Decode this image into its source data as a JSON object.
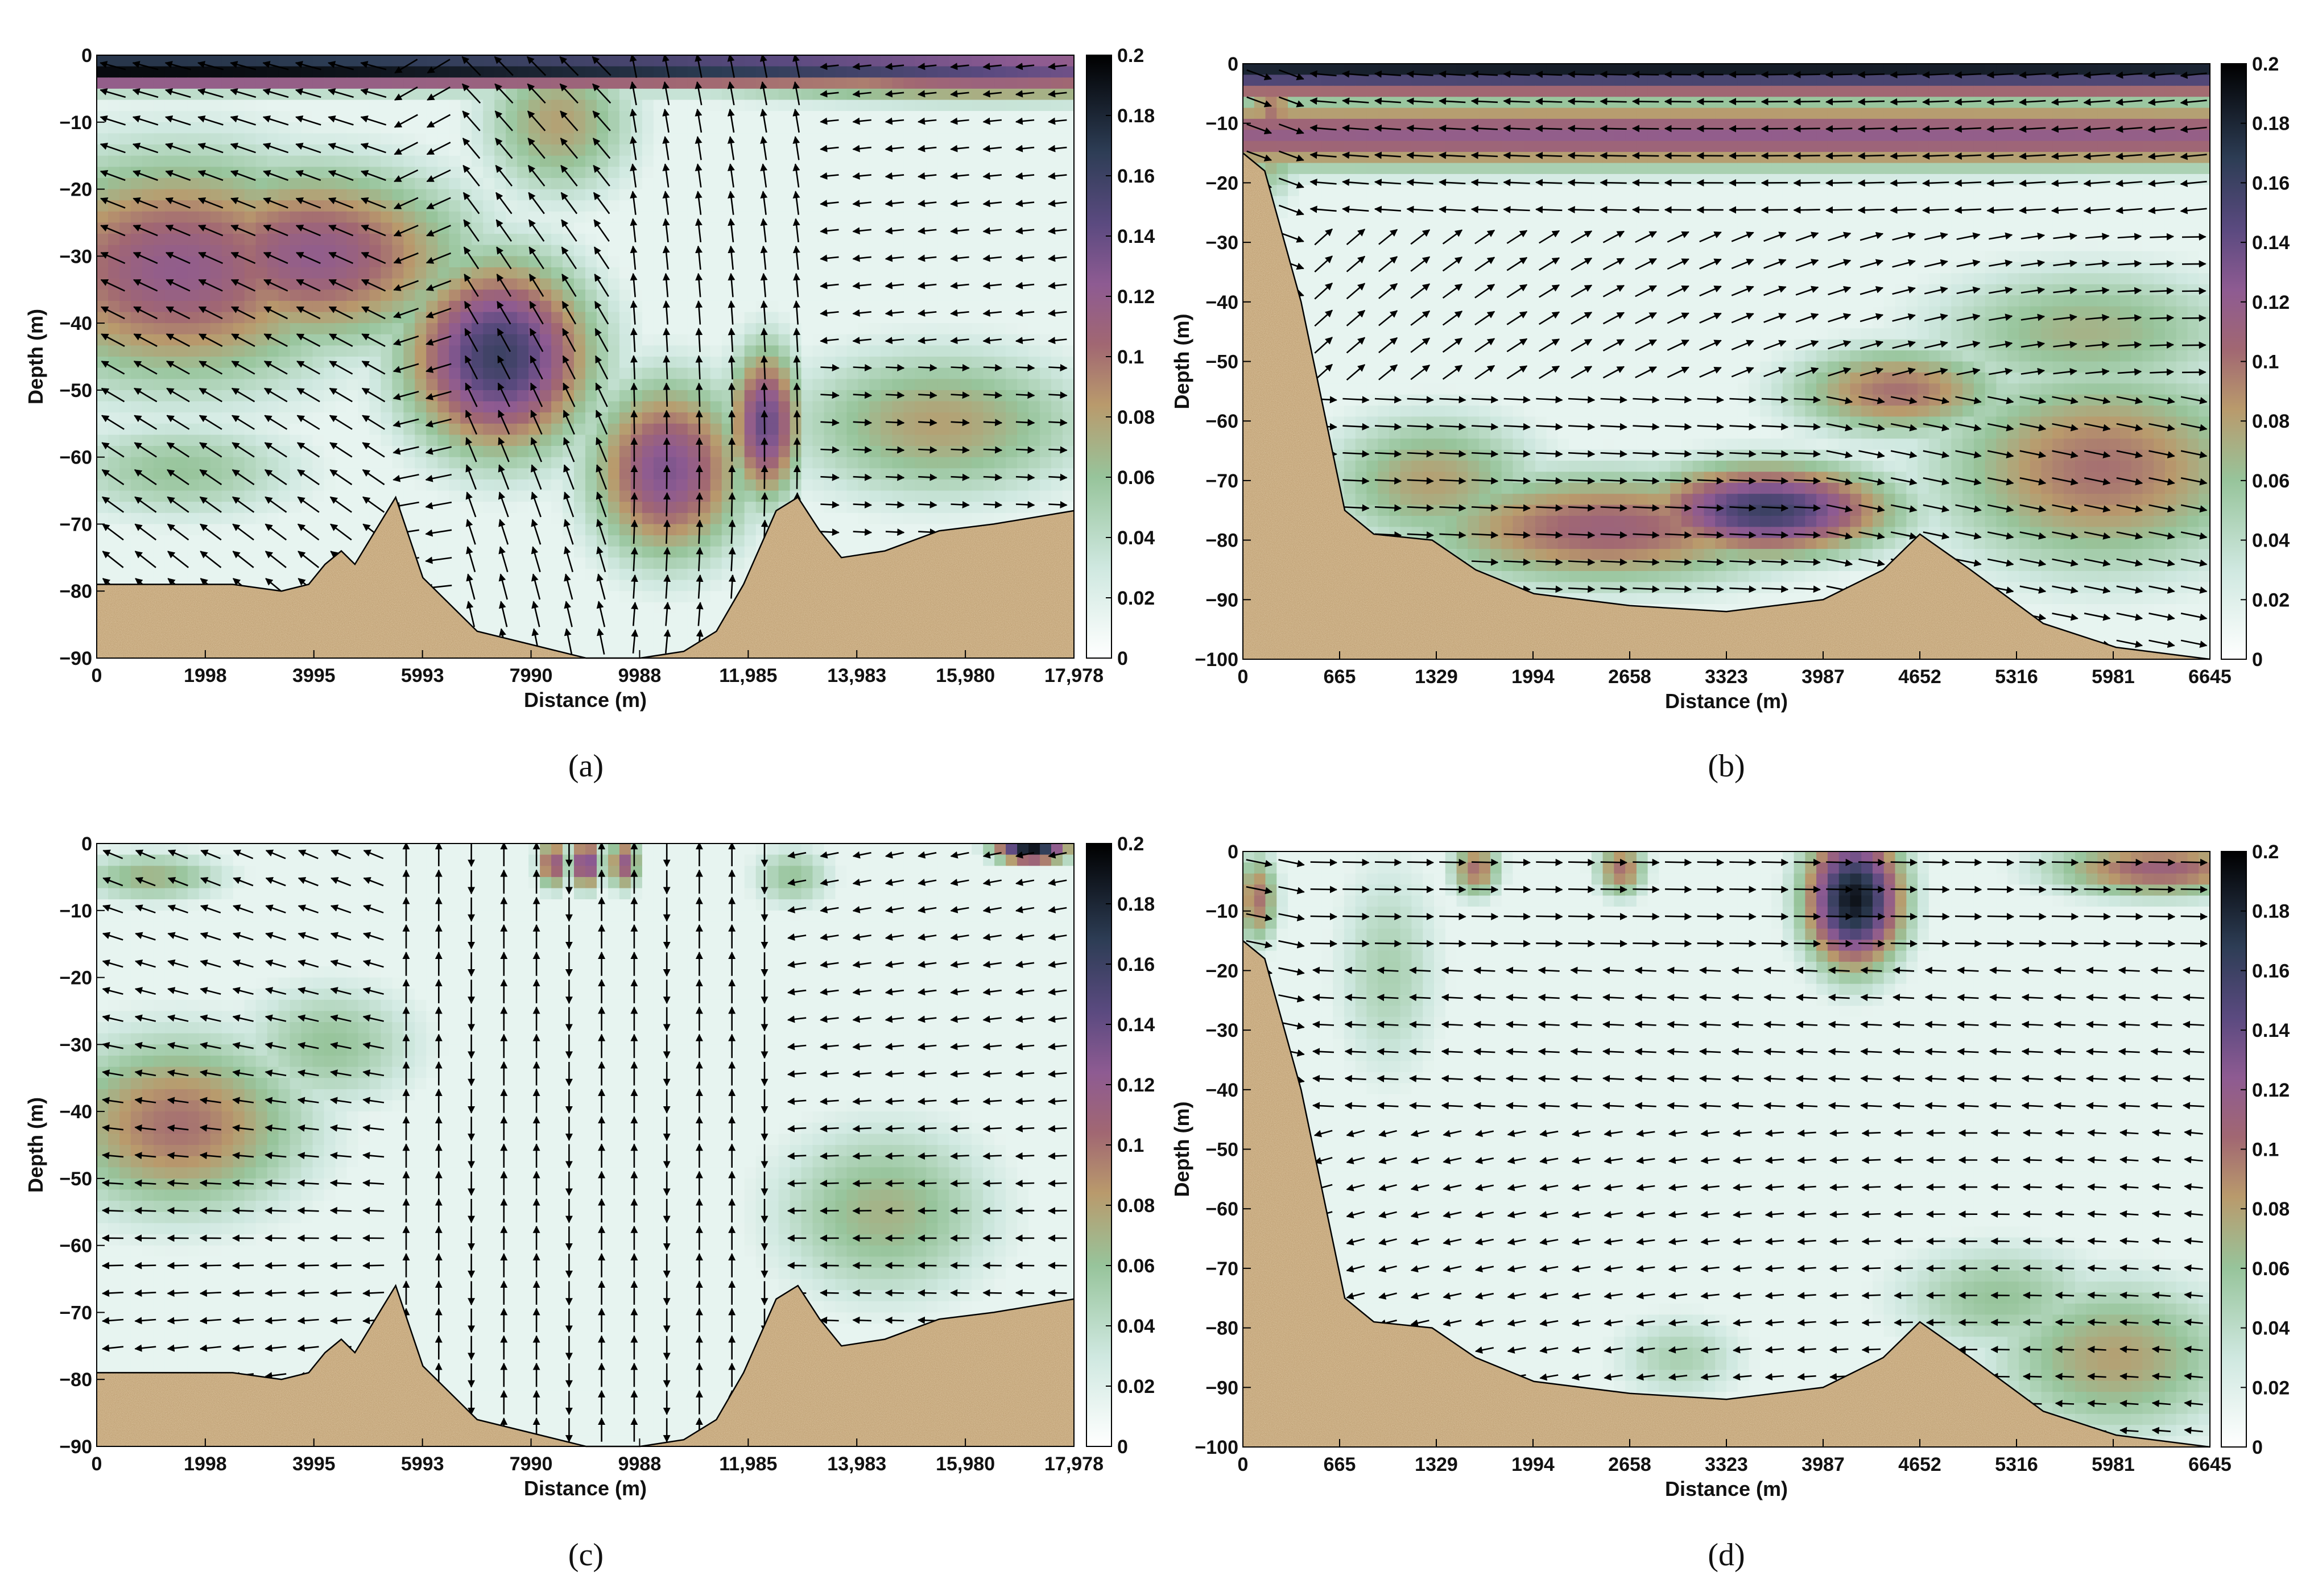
{
  "figure": {
    "captions": [
      "(a)",
      "(b)",
      "(c)",
      "(d)"
    ]
  },
  "chart_data": [
    {
      "id": "a",
      "type": "heatmap",
      "caption": "(a)",
      "xlabel": "Distance (m)",
      "ylabel": "Depth (m)",
      "xlim": [
        0,
        17978
      ],
      "ylim": [
        -90,
        0
      ],
      "xticks": [
        "0",
        "1998",
        "3995",
        "5993",
        "7990",
        "9988",
        "11,985",
        "13,983",
        "15,980",
        "17,978"
      ],
      "yticks": [
        "0",
        "−10",
        "−20",
        "−30",
        "−40",
        "−50",
        "−60",
        "−70",
        "−80",
        "−90"
      ],
      "colorbar": {
        "range": [
          0,
          0.2
        ],
        "ticks": [
          "0.2",
          "0.18",
          "0.16",
          "0.14",
          "0.12",
          "0.1",
          "0.08",
          "0.06",
          "0.04",
          "0.02",
          "0"
        ]
      },
      "bathymetry": [
        [
          0,
          -79
        ],
        [
          2500,
          -79
        ],
        [
          3400,
          -80
        ],
        [
          3900,
          -79
        ],
        [
          4200,
          -76
        ],
        [
          4500,
          -74
        ],
        [
          4750,
          -76
        ],
        [
          5500,
          -66
        ],
        [
          6000,
          -78
        ],
        [
          7000,
          -86
        ],
        [
          8000,
          -88
        ],
        [
          9000,
          -90
        ],
        [
          10000,
          -90
        ],
        [
          10800,
          -89
        ],
        [
          11400,
          -86
        ],
        [
          11900,
          -79
        ],
        [
          12500,
          -68
        ],
        [
          12900,
          -66
        ],
        [
          13300,
          -71
        ],
        [
          13700,
          -75
        ],
        [
          14500,
          -74
        ],
        [
          15500,
          -71
        ],
        [
          16500,
          -70
        ],
        [
          17978,
          -68
        ]
      ],
      "speed_blobs": [
        {
          "x": 0,
          "y": -2,
          "sx": 30000,
          "sy": 3,
          "v": 0.2
        },
        {
          "x": 1500,
          "y": -32,
          "sx": 3500,
          "sy": 18,
          "v": 0.12
        },
        {
          "x": 4000,
          "y": -30,
          "sx": 3000,
          "sy": 14,
          "v": 0.12
        },
        {
          "x": 7400,
          "y": -45,
          "sx": 1800,
          "sy": 15,
          "v": 0.16
        },
        {
          "x": 10500,
          "y": -62,
          "sx": 1500,
          "sy": 14,
          "v": 0.13
        },
        {
          "x": 12300,
          "y": -55,
          "sx": 700,
          "sy": 12,
          "v": 0.14
        },
        {
          "x": 8500,
          "y": -10,
          "sx": 1500,
          "sy": 12,
          "v": 0.08
        },
        {
          "x": 1500,
          "y": -62,
          "sx": 2500,
          "sy": 8,
          "v": 0.06
        },
        {
          "x": 15500,
          "y": -55,
          "sx": 3000,
          "sy": 12,
          "v": 0.08
        },
        {
          "x": 16500,
          "y": -3,
          "sx": 6000,
          "sy": 4,
          "v": 0.12
        }
      ],
      "flow_field": "westward-upper",
      "vmax": 0.2
    },
    {
      "id": "b",
      "type": "heatmap",
      "caption": "(b)",
      "xlabel": "Distance (m)",
      "ylabel": "Depth (m)",
      "xlim": [
        0,
        6645
      ],
      "ylim": [
        -100,
        0
      ],
      "xticks": [
        "0",
        "665",
        "1329",
        "1994",
        "2658",
        "3323",
        "3987",
        "4652",
        "5316",
        "5981",
        "6645"
      ],
      "yticks": [
        "0",
        "−10",
        "−20",
        "−30",
        "−40",
        "−50",
        "−60",
        "−70",
        "−80",
        "−90",
        "−100"
      ],
      "colorbar": {
        "range": [
          0,
          0.2
        ],
        "ticks": [
          "0.2",
          "0.18",
          "0.16",
          "0.14",
          "0.12",
          "0.1",
          "0.08",
          "0.06",
          "0.04",
          "0.02",
          "0"
        ]
      },
      "bathymetry": [
        [
          0,
          -15
        ],
        [
          150,
          -18
        ],
        [
          400,
          -40
        ],
        [
          700,
          -75
        ],
        [
          900,
          -79
        ],
        [
          1300,
          -80
        ],
        [
          1600,
          -85
        ],
        [
          2000,
          -89
        ],
        [
          2658,
          -91
        ],
        [
          3323,
          -92
        ],
        [
          3987,
          -90
        ],
        [
          4400,
          -85
        ],
        [
          4652,
          -79
        ],
        [
          5000,
          -85
        ],
        [
          5500,
          -94
        ],
        [
          6000,
          -98
        ],
        [
          6645,
          -100
        ]
      ],
      "speed_blobs": [
        {
          "x": 3300,
          "y": 0,
          "sx": 20000,
          "sy": 6,
          "v": 0.19
        },
        {
          "x": 3300,
          "y": -12,
          "sx": 20000,
          "sy": 6,
          "v": 0.12
        },
        {
          "x": 3600,
          "y": -75,
          "sx": 900,
          "sy": 8,
          "v": 0.16
        },
        {
          "x": 2500,
          "y": -78,
          "sx": 1400,
          "sy": 10,
          "v": 0.11
        },
        {
          "x": 1300,
          "y": -70,
          "sx": 800,
          "sy": 12,
          "v": 0.08
        },
        {
          "x": 5900,
          "y": -68,
          "sx": 1200,
          "sy": 18,
          "v": 0.1
        },
        {
          "x": 5800,
          "y": -45,
          "sx": 1200,
          "sy": 12,
          "v": 0.07
        },
        {
          "x": 4500,
          "y": -55,
          "sx": 800,
          "sy": 8,
          "v": 0.1
        },
        {
          "x": 200,
          "y": -10,
          "sx": 200,
          "sy": 12,
          "v": 0.1
        }
      ],
      "flow_field": "two-layer",
      "vmax": 0.2
    },
    {
      "id": "c",
      "type": "heatmap",
      "caption": "(c)",
      "xlabel": "Distance (m)",
      "ylabel": "Depth (m)",
      "xlim": [
        0,
        17978
      ],
      "ylim": [
        -90,
        0
      ],
      "xticks": [
        "0",
        "1998",
        "3995",
        "5993",
        "7990",
        "9988",
        "11,985",
        "13,983",
        "15,980",
        "17,978"
      ],
      "yticks": [
        "0",
        "−10",
        "−20",
        "−30",
        "−40",
        "−50",
        "−60",
        "−70",
        "−80",
        "−90"
      ],
      "colorbar": {
        "range": [
          0,
          0.2
        ],
        "ticks": [
          "0.2",
          "0.18",
          "0.16",
          "0.14",
          "0.12",
          "0.1",
          "0.08",
          "0.06",
          "0.04",
          "0.02",
          "0"
        ]
      },
      "bathymetry": [
        [
          0,
          -79
        ],
        [
          2500,
          -79
        ],
        [
          3400,
          -80
        ],
        [
          3900,
          -79
        ],
        [
          4200,
          -76
        ],
        [
          4500,
          -74
        ],
        [
          4750,
          -76
        ],
        [
          5500,
          -66
        ],
        [
          6000,
          -78
        ],
        [
          7000,
          -86
        ],
        [
          8000,
          -88
        ],
        [
          9000,
          -90
        ],
        [
          10000,
          -90
        ],
        [
          10800,
          -89
        ],
        [
          11400,
          -86
        ],
        [
          11900,
          -79
        ],
        [
          12500,
          -68
        ],
        [
          12900,
          -66
        ],
        [
          13300,
          -71
        ],
        [
          13700,
          -75
        ],
        [
          14500,
          -74
        ],
        [
          15500,
          -71
        ],
        [
          16500,
          -70
        ],
        [
          17978,
          -68
        ]
      ],
      "speed_blobs": [
        {
          "x": 1500,
          "y": -42,
          "sx": 2500,
          "sy": 14,
          "v": 0.1
        },
        {
          "x": 4300,
          "y": -30,
          "sx": 1800,
          "sy": 10,
          "v": 0.06
        },
        {
          "x": 14500,
          "y": -55,
          "sx": 2200,
          "sy": 14,
          "v": 0.07
        },
        {
          "x": 1000,
          "y": -5,
          "sx": 1500,
          "sy": 4,
          "v": 0.07
        },
        {
          "x": 8400,
          "y": -3,
          "sx": 300,
          "sy": 4,
          "v": 0.12
        },
        {
          "x": 9000,
          "y": -3,
          "sx": 300,
          "sy": 4,
          "v": 0.14
        },
        {
          "x": 9700,
          "y": -3,
          "sx": 300,
          "sy": 4,
          "v": 0.12
        },
        {
          "x": 17200,
          "y": -1,
          "sx": 700,
          "sy": 2,
          "v": 0.19
        },
        {
          "x": 12800,
          "y": -5,
          "sx": 800,
          "sy": 5,
          "v": 0.06
        }
      ],
      "flow_field": "vertical-middle",
      "vmax": 0.2
    },
    {
      "id": "d",
      "type": "heatmap",
      "caption": "(d)",
      "xlabel": "Distance (m)",
      "ylabel": "Depth (m)",
      "xlim": [
        0,
        6645
      ],
      "ylim": [
        -100,
        0
      ],
      "xticks": [
        "0",
        "665",
        "1329",
        "1994",
        "2658",
        "3323",
        "3987",
        "4652",
        "5316",
        "5981",
        "6645"
      ],
      "yticks": [
        "0",
        "−10",
        "−20",
        "−30",
        "−40",
        "−50",
        "−60",
        "−70",
        "−80",
        "−90",
        "−100"
      ],
      "colorbar": {
        "range": [
          0,
          0.2
        ],
        "ticks": [
          "0.2",
          "0.18",
          "0.16",
          "0.14",
          "0.12",
          "0.1",
          "0.08",
          "0.06",
          "0.04",
          "0.02",
          "0"
        ]
      },
      "bathymetry": [
        [
          0,
          -15
        ],
        [
          150,
          -18
        ],
        [
          400,
          -40
        ],
        [
          700,
          -75
        ],
        [
          900,
          -79
        ],
        [
          1300,
          -80
        ],
        [
          1600,
          -85
        ],
        [
          2000,
          -89
        ],
        [
          2658,
          -91
        ],
        [
          3323,
          -92
        ],
        [
          3987,
          -90
        ],
        [
          4400,
          -85
        ],
        [
          4652,
          -79
        ],
        [
          5000,
          -85
        ],
        [
          5500,
          -94
        ],
        [
          6000,
          -98
        ],
        [
          6645,
          -100
        ]
      ],
      "speed_blobs": [
        {
          "x": 4200,
          "y": -8,
          "sx": 350,
          "sy": 12,
          "v": 0.19
        },
        {
          "x": 1600,
          "y": -3,
          "sx": 180,
          "sy": 5,
          "v": 0.1
        },
        {
          "x": 2600,
          "y": -3,
          "sx": 180,
          "sy": 5,
          "v": 0.1
        },
        {
          "x": 6300,
          "y": -3,
          "sx": 800,
          "sy": 5,
          "v": 0.11
        },
        {
          "x": 6000,
          "y": -85,
          "sx": 900,
          "sy": 14,
          "v": 0.08
        },
        {
          "x": 5200,
          "y": -75,
          "sx": 800,
          "sy": 10,
          "v": 0.06
        },
        {
          "x": 1000,
          "y": -20,
          "sx": 400,
          "sy": 20,
          "v": 0.05
        },
        {
          "x": 3000,
          "y": -85,
          "sx": 500,
          "sy": 8,
          "v": 0.05
        },
        {
          "x": 100,
          "y": -8,
          "sx": 150,
          "sy": 8,
          "v": 0.1
        }
      ],
      "flow_field": "eastward-upper",
      "vmax": 0.2
    }
  ]
}
